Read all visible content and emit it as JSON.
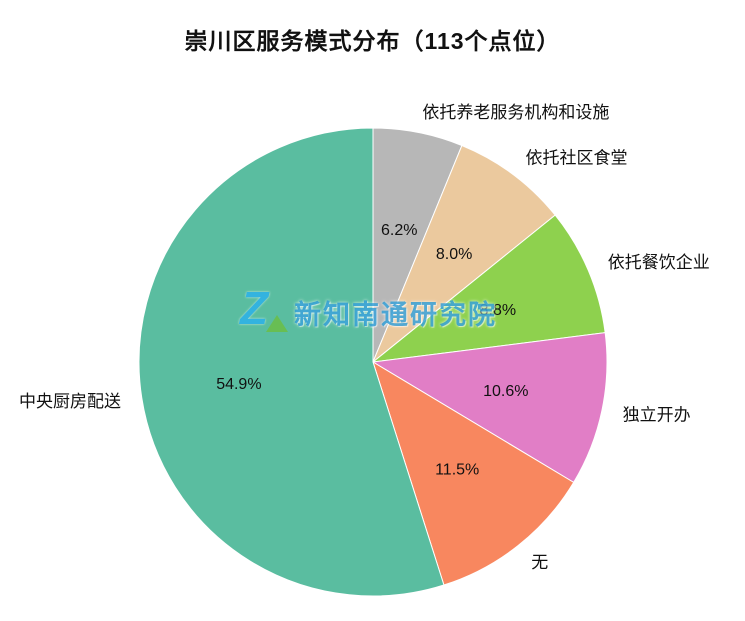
{
  "chart_data": {
    "type": "pie",
    "title": "崇川区服务模式分布（113个点位）",
    "categories": [
      "依托养老服务机构和设施",
      "依托社区食堂",
      "依托餐饮企业",
      "独立开办",
      "无",
      "中央厨房配送"
    ],
    "values": [
      6.2,
      8.0,
      8.8,
      10.6,
      11.5,
      54.9
    ],
    "value_labels": [
      "6.2%",
      "8.0%",
      "8.8%",
      "10.6%",
      "11.5%",
      "54.9%"
    ],
    "colors": [
      "#b7b7b7",
      "#ebc99e",
      "#8ed14e",
      "#e17ec6",
      "#f8875f",
      "#5abda0"
    ],
    "start_angle_deg": 0,
    "direction": "clockwise",
    "legend_position": "none",
    "total_points": 113
  },
  "watermark": {
    "logo_glyph": "Z",
    "text": "新知南通研究院",
    "logo_color": "#2fb3e6",
    "accent_color": "#6abf4b",
    "text_color": "#299ad5"
  }
}
